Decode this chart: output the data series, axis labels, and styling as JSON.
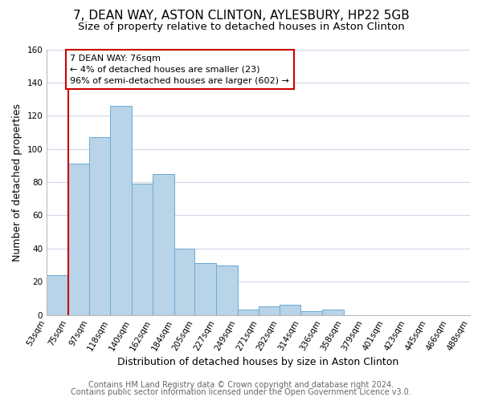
{
  "title": "7, DEAN WAY, ASTON CLINTON, AYLESBURY, HP22 5GB",
  "subtitle": "Size of property relative to detached houses in Aston Clinton",
  "xlabel": "Distribution of detached houses by size in Aston Clinton",
  "ylabel": "Number of detached properties",
  "bin_edges": [
    53,
    75,
    97,
    118,
    140,
    162,
    184,
    205,
    227,
    249,
    271,
    292,
    314,
    336,
    358,
    379,
    401,
    423,
    445,
    466,
    488
  ],
  "bin_heights": [
    24,
    91,
    107,
    126,
    79,
    85,
    40,
    31,
    30,
    3,
    5,
    6,
    2,
    3,
    0,
    0,
    0,
    0,
    0,
    0
  ],
  "bar_color": "#b8d4e8",
  "bar_edge_color": "#6aaad4",
  "vline_x": 75,
  "vline_color": "#cc0000",
  "annotation_text_line1": "7 DEAN WAY: 76sqm",
  "annotation_text_line2": "← 4% of detached houses are smaller (23)",
  "annotation_text_line3": "96% of semi-detached houses are larger (602) →",
  "annotation_box_color": "#cc0000",
  "ylim": [
    0,
    160
  ],
  "yticks": [
    0,
    20,
    40,
    60,
    80,
    100,
    120,
    140,
    160
  ],
  "tick_labels": [
    "53sqm",
    "75sqm",
    "97sqm",
    "118sqm",
    "140sqm",
    "162sqm",
    "184sqm",
    "205sqm",
    "227sqm",
    "249sqm",
    "271sqm",
    "292sqm",
    "314sqm",
    "336sqm",
    "358sqm",
    "379sqm",
    "401sqm",
    "423sqm",
    "445sqm",
    "466sqm",
    "488sqm"
  ],
  "footer_line1": "Contains HM Land Registry data © Crown copyright and database right 2024.",
  "footer_line2": "Contains public sector information licensed under the Open Government Licence v3.0.",
  "bg_color": "#ffffff",
  "grid_color": "#d0d8e8",
  "title_fontsize": 11,
  "subtitle_fontsize": 9.5,
  "axis_label_fontsize": 9,
  "tick_fontsize": 7.5,
  "footer_fontsize": 7,
  "annot_fontsize": 8
}
